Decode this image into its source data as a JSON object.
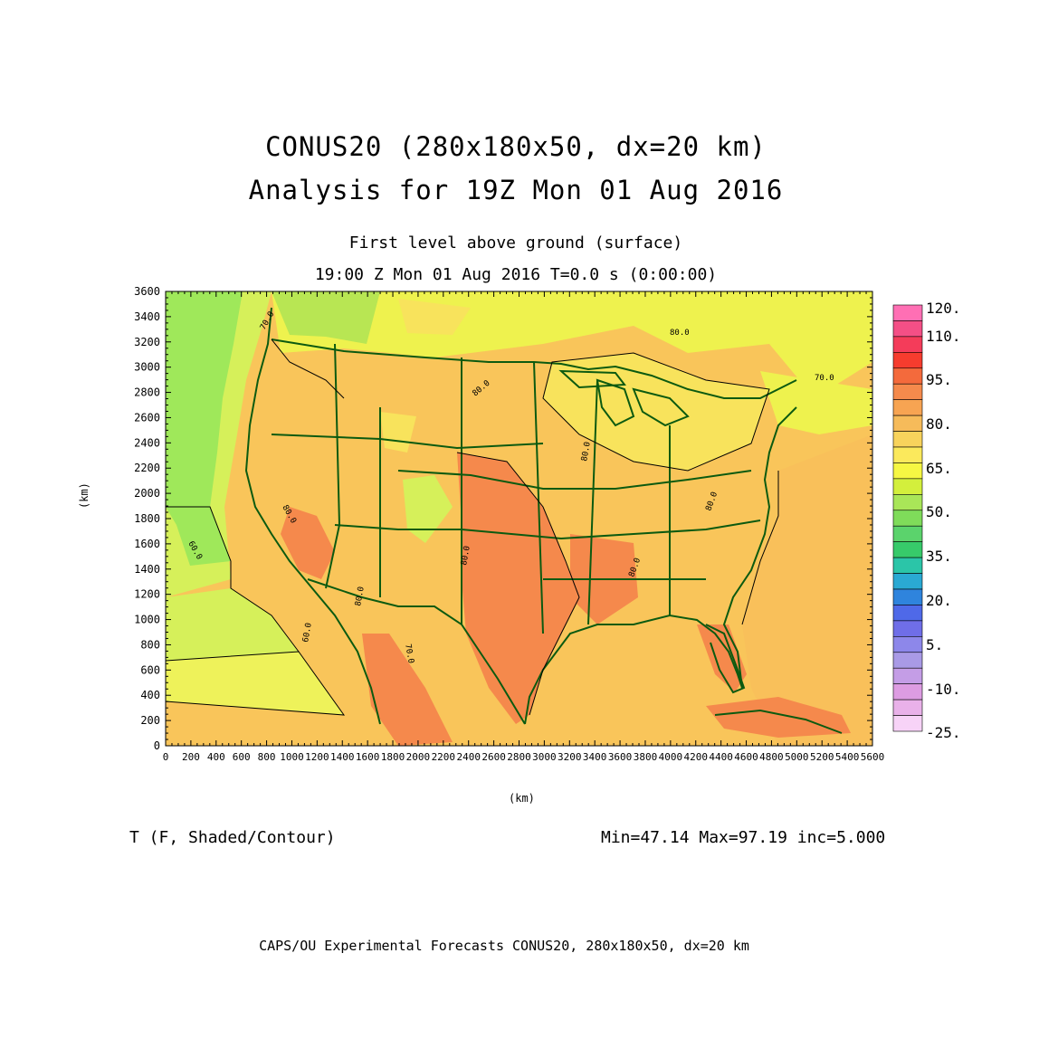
{
  "title_line1": "CONUS20 (280x180x50, dx=20 km)",
  "title_line2": "Analysis for 19Z Mon 01 Aug 2016",
  "subtitle_level": "First level above ground (surface)",
  "subtitle_time": "19:00 Z Mon 01 Aug 2016    T=0.0 s (0:00:00)",
  "x_axis_label": "(km)",
  "y_axis_label": "(km)",
  "x_ticks": [
    "0",
    "200",
    "400",
    "600",
    "800",
    "1000",
    "1200",
    "1400",
    "1600",
    "1800",
    "2000",
    "2200",
    "2400",
    "2600",
    "2800",
    "3000",
    "3200",
    "3400",
    "3600",
    "3800",
    "4000",
    "4200",
    "4400",
    "4600",
    "4800",
    "5000",
    "5200",
    "5400",
    "5600"
  ],
  "y_ticks": [
    "0",
    "200",
    "400",
    "600",
    "800",
    "1000",
    "1200",
    "1400",
    "1600",
    "1800",
    "2000",
    "2200",
    "2400",
    "2600",
    "2800",
    "3000",
    "3200",
    "3400",
    "3600"
  ],
  "variable_label": "T (F, Shaded/Contour)",
  "stats_label": "Min=47.14 Max=97.19 inc=5.000",
  "footer": "CAPS/OU Experimental Forecasts  CONUS20, 280x180x50, dx=20 km",
  "colorbar": {
    "labels": [
      "120.",
      "110.",
      "95.",
      "80.",
      "65.",
      "50.",
      "35.",
      "20.",
      "5.",
      "-10.",
      "-25."
    ],
    "colors": [
      "#ff6fb4",
      "#f44f86",
      "#f43c5a",
      "#f63c2e",
      "#f46a3c",
      "#f58a4c",
      "#f7a452",
      "#f6bb5a",
      "#f8d35c",
      "#fbe95c",
      "#f6f743",
      "#d3ef3c",
      "#a9e658",
      "#7fdc5a",
      "#5bd36c",
      "#37ca6a",
      "#2bc5a8",
      "#2aa9d3",
      "#2f84dd",
      "#4f69e8",
      "#6f6ee8",
      "#8d87ea",
      "#a99ae6",
      "#c49de6",
      "#dd9ce2",
      "#e9b1e9",
      "#f7d3f7"
    ]
  },
  "map": {
    "colors": {
      "ocean_pacific_deep": "#9fe85a",
      "ocean_pacific_mid": "#d6f05a",
      "ocean_pacific_south": "#eef25a",
      "land_base": "#f9c55a",
      "ocean_atlantic": "#f9c05a",
      "hot": "#f5894c",
      "cool_north": "#f8e35c",
      "cool_canada": "#eef24e",
      "mountain_cool": "#b8e653",
      "borders": "#0c5a10",
      "contour": "#000000"
    },
    "contour_labels": [
      "80.0",
      "80.0",
      "80.0",
      "80.0",
      "70.0",
      "70.0",
      "60.0",
      "60.0",
      "80.0",
      "80.0",
      "80.0",
      "80.0",
      "70.0"
    ]
  }
}
